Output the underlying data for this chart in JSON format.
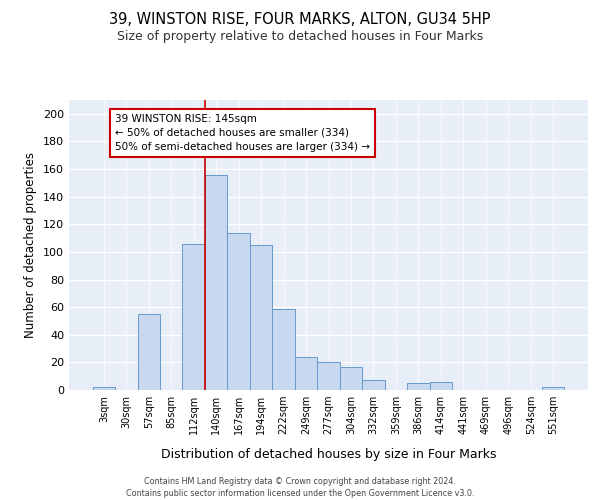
{
  "title": "39, WINSTON RISE, FOUR MARKS, ALTON, GU34 5HP",
  "subtitle": "Size of property relative to detached houses in Four Marks",
  "xlabel": "Distribution of detached houses by size in Four Marks",
  "ylabel": "Number of detached properties",
  "bar_labels": [
    "3sqm",
    "30sqm",
    "57sqm",
    "85sqm",
    "112sqm",
    "140sqm",
    "167sqm",
    "194sqm",
    "222sqm",
    "249sqm",
    "277sqm",
    "304sqm",
    "332sqm",
    "359sqm",
    "386sqm",
    "414sqm",
    "441sqm",
    "469sqm",
    "496sqm",
    "524sqm",
    "551sqm"
  ],
  "bar_values": [
    2,
    0,
    55,
    0,
    106,
    156,
    114,
    105,
    59,
    24,
    20,
    17,
    7,
    0,
    5,
    6,
    0,
    0,
    0,
    0,
    2
  ],
  "bar_color": "#c8d8ee",
  "bar_edge_color": "#6699cc",
  "vline_x": 5,
  "vline_color": "#cc0000",
  "annotation_text": "39 WINSTON RISE: 145sqm\n← 50% of detached houses are smaller (334)\n50% of semi-detached houses are larger (334) →",
  "annotation_box_color": "#ffffff",
  "annotation_box_edge_color": "#cc0000",
  "ylim": [
    0,
    210
  ],
  "yticks": [
    0,
    20,
    40,
    60,
    80,
    100,
    120,
    140,
    160,
    180,
    200
  ],
  "bg_color": "#e8eef8",
  "footer_line1": "Contains HM Land Registry data © Crown copyright and database right 2024.",
  "footer_line2": "Contains public sector information licensed under the Open Government Licence v3.0."
}
